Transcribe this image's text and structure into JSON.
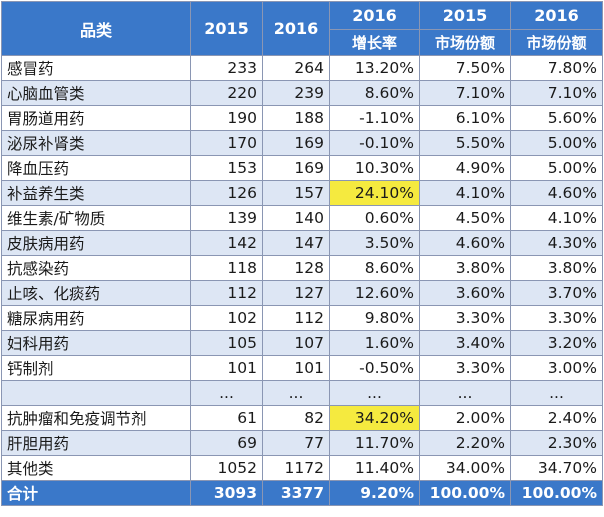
{
  "header": {
    "category_label": "品类",
    "year_2015": "2015",
    "year_2016": "2016",
    "growth_year": "2016",
    "growth_label": "增长率",
    "share2015_year": "2015",
    "share2015_label": "市场份额",
    "share2016_year": "2016",
    "share2016_label": "市场份额"
  },
  "rows": [
    {
      "name": "感冒药",
      "v2015": "233",
      "v2016": "264",
      "growth": "13.20%",
      "share2015": "7.50%",
      "share2016": "7.80%"
    },
    {
      "name": "心脑血管类",
      "v2015": "220",
      "v2016": "239",
      "growth": "8.60%",
      "share2015": "7.10%",
      "share2016": "7.10%"
    },
    {
      "name": "胃肠道用药",
      "v2015": "190",
      "v2016": "188",
      "growth": "-1.10%",
      "share2015": "6.10%",
      "share2016": "5.60%"
    },
    {
      "name": "泌尿补肾类",
      "v2015": "170",
      "v2016": "169",
      "growth": "-0.10%",
      "share2015": "5.50%",
      "share2016": "5.00%"
    },
    {
      "name": "降血压药",
      "v2015": "153",
      "v2016": "169",
      "growth": "10.30%",
      "share2015": "4.90%",
      "share2016": "5.00%"
    },
    {
      "name": "补益养生类",
      "v2015": "126",
      "v2016": "157",
      "growth": "24.10%",
      "share2015": "4.10%",
      "share2016": "4.60%"
    },
    {
      "name": "维生素/矿物质",
      "v2015": "139",
      "v2016": "140",
      "growth": "0.60%",
      "share2015": "4.50%",
      "share2016": "4.10%"
    },
    {
      "name": "皮肤病用药",
      "v2015": "142",
      "v2016": "147",
      "growth": "3.50%",
      "share2015": "4.60%",
      "share2016": "4.30%"
    },
    {
      "name": "抗感染药",
      "v2015": "118",
      "v2016": "128",
      "growth": "8.60%",
      "share2015": "3.80%",
      "share2016": "3.80%"
    },
    {
      "name": "止咳、化痰药",
      "v2015": "112",
      "v2016": "127",
      "growth": "12.60%",
      "share2015": "3.60%",
      "share2016": "3.70%"
    },
    {
      "name": "糖尿病用药",
      "v2015": "102",
      "v2016": "112",
      "growth": "9.80%",
      "share2015": "3.30%",
      "share2016": "3.30%"
    },
    {
      "name": "妇科用药",
      "v2015": "105",
      "v2016": "107",
      "growth": "1.60%",
      "share2015": "3.40%",
      "share2016": "3.20%"
    },
    {
      "name": "钙制剂",
      "v2015": "101",
      "v2016": "101",
      "growth": "-0.50%",
      "share2015": "3.30%",
      "share2016": "3.00%"
    },
    {
      "name": "",
      "v2015": "...",
      "v2016": "...",
      "growth": "...",
      "share2015": "...",
      "share2016": "..."
    },
    {
      "name": "抗肿瘤和免疫调节剂",
      "v2015": "61",
      "v2016": "82",
      "growth": "34.20%",
      "share2015": "2.00%",
      "share2016": "2.40%"
    },
    {
      "name": "肝胆用药",
      "v2015": "69",
      "v2016": "77",
      "growth": "11.70%",
      "share2015": "2.20%",
      "share2016": "2.30%"
    },
    {
      "name": "其他类",
      "v2015": "1052",
      "v2016": "1172",
      "growth": "11.40%",
      "share2015": "34.00%",
      "share2016": "34.70%"
    }
  ],
  "total": {
    "name": "合计",
    "v2015": "3093",
    "v2016": "3377",
    "growth": "9.20%",
    "share2015": "100.00%",
    "share2016": "100.00%"
  },
  "highlight_color": "#f5ea3f",
  "header_color": "#3a78c9"
}
